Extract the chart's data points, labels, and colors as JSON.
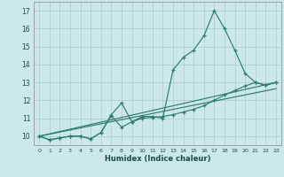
{
  "xlabel": "Humidex (Indice chaleur)",
  "bg_color": "#cce8e8",
  "grid_color": "#aacccc",
  "line_color": "#2e7d6e",
  "xlim": [
    -0.5,
    23.5
  ],
  "ylim": [
    9.5,
    17.5
  ],
  "xticks": [
    0,
    1,
    2,
    3,
    4,
    5,
    6,
    7,
    8,
    9,
    10,
    11,
    12,
    13,
    14,
    15,
    16,
    17,
    18,
    19,
    20,
    21,
    22,
    23
  ],
  "yticks": [
    10,
    11,
    12,
    13,
    14,
    15,
    16,
    17
  ],
  "line1_x": [
    0,
    1,
    2,
    3,
    4,
    5,
    6,
    7,
    8,
    9,
    10,
    11,
    12,
    13,
    14,
    15,
    16,
    17,
    18,
    19,
    20,
    21,
    22,
    23
  ],
  "line1_y": [
    10.0,
    9.8,
    9.9,
    10.0,
    10.0,
    9.85,
    10.2,
    11.2,
    11.85,
    10.8,
    11.1,
    11.1,
    11.0,
    13.7,
    14.4,
    14.8,
    15.6,
    17.0,
    16.0,
    14.8,
    13.5,
    13.0,
    12.85,
    13.0
  ],
  "line2_x": [
    0,
    1,
    2,
    3,
    4,
    5,
    6,
    7,
    8,
    9,
    10,
    11,
    12,
    13,
    14,
    15,
    16,
    17,
    18,
    19,
    20,
    21,
    22,
    23
  ],
  "line2_y": [
    10.0,
    9.8,
    9.9,
    10.0,
    10.0,
    9.85,
    10.2,
    11.15,
    10.5,
    10.8,
    11.0,
    11.05,
    11.1,
    11.2,
    11.35,
    11.5,
    11.7,
    12.0,
    12.3,
    12.55,
    12.8,
    13.0,
    12.85,
    13.0
  ],
  "line3_y_start": 10.0,
  "line3_y_end": 13.0,
  "line4_y_start": 10.0,
  "line4_y_end": 12.65
}
